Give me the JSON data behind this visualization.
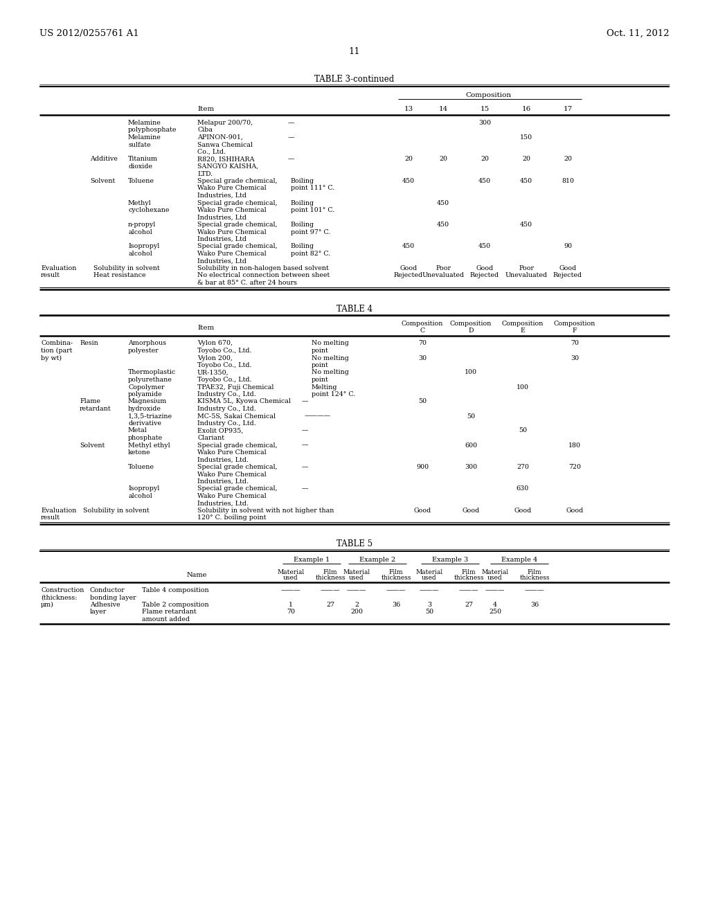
{
  "bg_color": "#ffffff",
  "header_left": "US 2012/0255761 A1",
  "header_right": "Oct. 11, 2012",
  "page_number": "11",
  "table3_title": "TABLE 3-continued",
  "table4_title": "TABLE 4",
  "table5_title": "TABLE 5"
}
